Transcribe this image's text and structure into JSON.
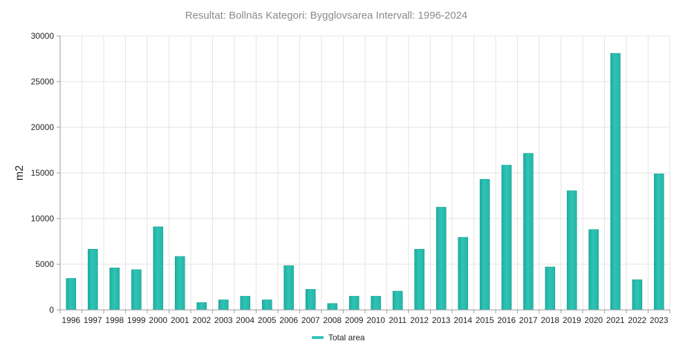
{
  "chart_data": {
    "type": "bar",
    "title": "Resultat: Bollnäs Kategori: Bygglovsarea Intervall: 1996-2024",
    "xlabel": "",
    "ylabel": "m2",
    "ylim": [
      0,
      30000
    ],
    "yticks": [
      0,
      5000,
      10000,
      15000,
      20000,
      25000,
      30000
    ],
    "grid": true,
    "legend_position": "bottom",
    "categories": [
      "1996",
      "1997",
      "1998",
      "1999",
      "2000",
      "2001",
      "2002",
      "2003",
      "2004",
      "2005",
      "2006",
      "2007",
      "2008",
      "2009",
      "2010",
      "2011",
      "2012",
      "2013",
      "2014",
      "2015",
      "2016",
      "2017",
      "2018",
      "2019",
      "2020",
      "2021",
      "2022",
      "2023"
    ],
    "series": [
      {
        "name": "Total area",
        "color": "#2ec4b6",
        "values": [
          3450,
          6650,
          4600,
          4400,
          9100,
          5850,
          800,
          1100,
          1500,
          1100,
          4850,
          2250,
          700,
          1500,
          1500,
          2050,
          6650,
          11250,
          7950,
          14300,
          15850,
          17150,
          4700,
          13050,
          8800,
          28100,
          3300,
          14900
        ]
      }
    ]
  }
}
